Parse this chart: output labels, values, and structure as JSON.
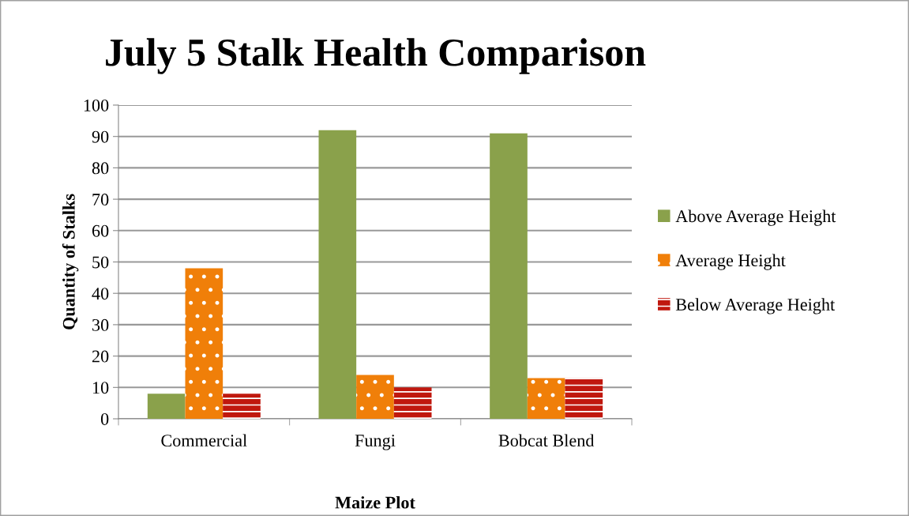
{
  "chart_data": {
    "type": "bar",
    "title": "July 5 Stalk Health Comparison",
    "xlabel": "Maize Plot",
    "ylabel": "Quantity of Stalks",
    "categories": [
      "Commercial",
      "Fungi",
      "Bobcat Blend"
    ],
    "series": [
      {
        "name": "Above Average Height",
        "color": "#8aa14b",
        "values": [
          8,
          92,
          91
        ]
      },
      {
        "name": "Average Height",
        "color": "#f07f09",
        "values": [
          48,
          14,
          13
        ]
      },
      {
        "name": "Below Average Height",
        "color": "#c0180e",
        "values": [
          8,
          10,
          13
        ]
      }
    ],
    "ylim": [
      0,
      100
    ],
    "yticks": [
      0,
      10,
      20,
      30,
      40,
      50,
      60,
      70,
      80,
      90,
      100
    ],
    "grid": "y",
    "legend": "right"
  }
}
